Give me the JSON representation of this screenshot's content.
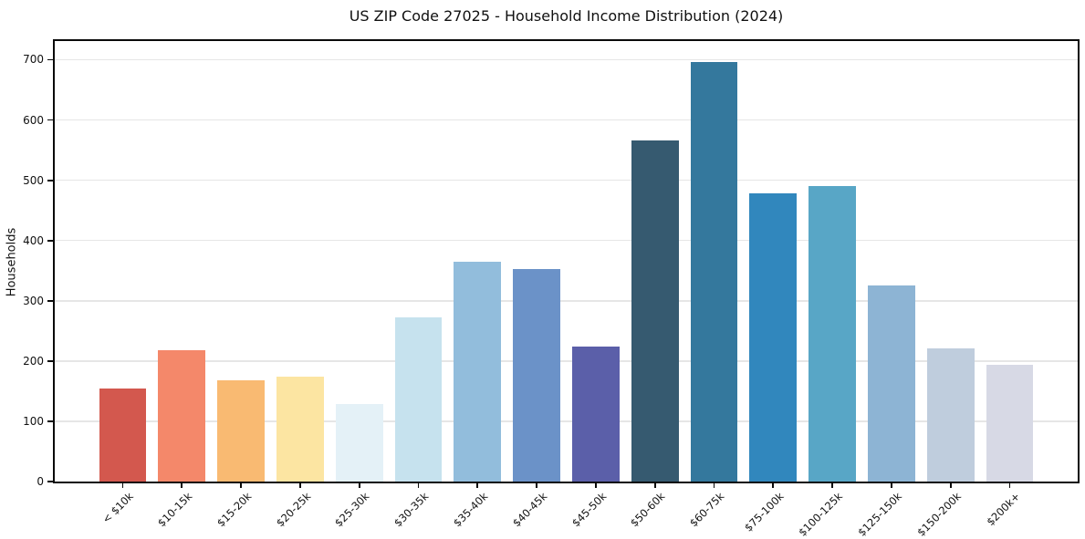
{
  "chart_data": {
    "type": "bar",
    "title": "US ZIP Code 27025 - Household Income Distribution (2024)",
    "xlabel": "",
    "ylabel": "Households",
    "categories": [
      "< $10k",
      "$10-15k",
      "$15-20k",
      "$20-25k",
      "$25-30k",
      "$30-35k",
      "$35-40k",
      "$40-45k",
      "$45-50k",
      "$50-60k",
      "$60-75k",
      "$75-100k",
      "$100-125k",
      "$125-150k",
      "$150-200k",
      "$200k+"
    ],
    "values": [
      155,
      218,
      168,
      174,
      129,
      273,
      365,
      353,
      224,
      566,
      696,
      478,
      490,
      325,
      221,
      194
    ],
    "bar_colors": [
      "#d3584e",
      "#f4886a",
      "#f9ba72",
      "#fce5a2",
      "#e4f1f7",
      "#c6e2ee",
      "#92bddc",
      "#6b92c8",
      "#5b5fa9",
      "#365a70",
      "#34789d",
      "#3187bd",
      "#58a6c6",
      "#8db4d4",
      "#bfcddd",
      "#d7d9e5"
    ],
    "yticks": [
      0,
      100,
      200,
      300,
      400,
      500,
      600,
      700
    ],
    "ylim": [
      0,
      731
    ],
    "grid": "horizontal",
    "gridline_color": "#e6e6e6",
    "spine_color": "#0a0a0a",
    "background_color": "#ffffff",
    "legend": "none",
    "x_tick_rotation_deg": 45
  }
}
